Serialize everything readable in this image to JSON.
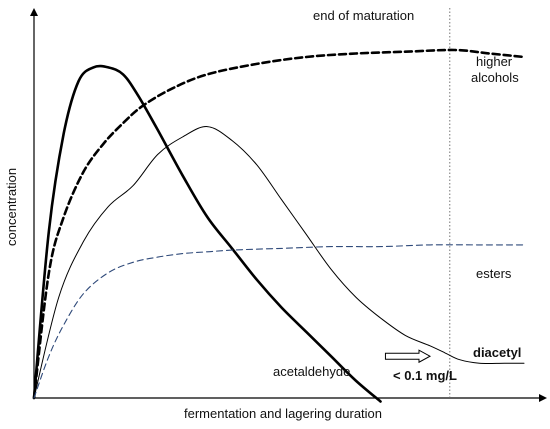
{
  "chart_data": {
    "type": "line",
    "xlabel": "fermentation and lagering duration",
    "ylabel": "concentration",
    "xlim": [
      0,
      100
    ],
    "ylim": [
      0,
      100
    ],
    "annotations": {
      "end_of_maturation": {
        "text": "end of maturation",
        "x": 84
      },
      "threshold": {
        "text": "< 0.1 mg/L",
        "arrow_from_x": 71,
        "arrow_to_x": 80,
        "y": 12
      }
    },
    "series": [
      {
        "name": "acetaldehyde",
        "label_lines": [
          "acetaldehyde"
        ],
        "style": "thick-solid",
        "x": [
          0,
          3,
          6,
          9,
          12,
          15,
          18,
          21,
          25,
          30,
          35,
          40,
          45,
          50,
          55,
          60,
          65,
          70
        ],
        "y": [
          0,
          48,
          76,
          91,
          95,
          95,
          93,
          87,
          77,
          64,
          52,
          43,
          34,
          26,
          19,
          12,
          5,
          -1
        ]
      },
      {
        "name": "diacetyl",
        "label_lines": [
          "diacetyl"
        ],
        "style": "thin-solid",
        "label_bold": true,
        "x": [
          0,
          5,
          10,
          15,
          20,
          25,
          30,
          35,
          40,
          45,
          50,
          55,
          60,
          65,
          70,
          75,
          80,
          83,
          86,
          90,
          95,
          99
        ],
        "y": [
          0,
          29,
          45,
          55,
          61,
          70,
          75,
          78,
          74,
          67,
          57,
          47,
          37,
          29,
          23,
          18,
          15,
          13,
          11,
          10,
          10,
          10
        ]
      },
      {
        "name": "higher alcohols",
        "label_lines": [
          "higher",
          "alcohols"
        ],
        "style": "thick-dashed",
        "x": [
          0,
          3,
          6,
          10,
          14,
          18,
          22,
          28,
          35,
          45,
          55,
          65,
          75,
          85,
          92,
          99
        ],
        "y": [
          0,
          36,
          52,
          65,
          73,
          79,
          84,
          89,
          93,
          96,
          98,
          99,
          99.5,
          100,
          99,
          98
        ]
      },
      {
        "name": "esters",
        "label_lines": [
          "esters"
        ],
        "style": "thin-dashed",
        "x": [
          0,
          3,
          6,
          10,
          15,
          20,
          25,
          30,
          35,
          40,
          50,
          60,
          70,
          80,
          90,
          99
        ],
        "y": [
          0,
          12,
          21,
          30,
          36,
          39,
          40.5,
          41.5,
          42,
          42.5,
          43,
          43.5,
          43.5,
          44,
          44,
          44
        ]
      }
    ]
  }
}
